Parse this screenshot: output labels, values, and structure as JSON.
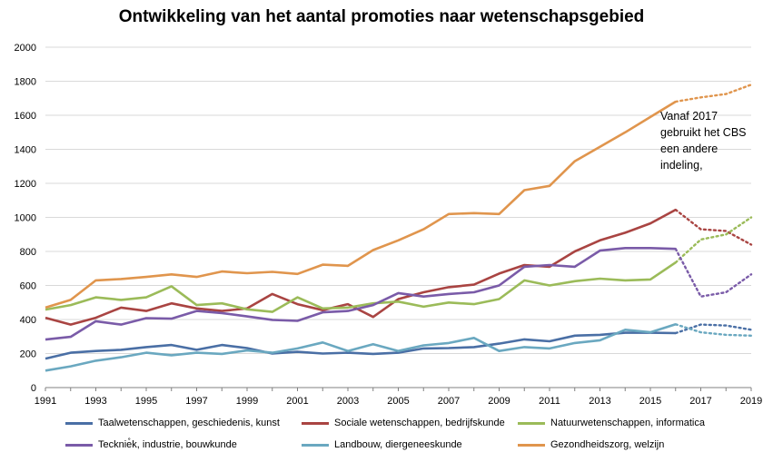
{
  "chart_data": {
    "type": "line",
    "title": "Ontwikkeling van het aantal promoties naar wetenschapsgebied",
    "xlabel": "",
    "ylabel": "",
    "xlim": [
      1991,
      2019
    ],
    "ylim": [
      0,
      2000
    ],
    "yticks": [
      0,
      200,
      400,
      600,
      800,
      1000,
      1200,
      1400,
      1600,
      1800,
      2000
    ],
    "xticks": [
      1991,
      1993,
      1995,
      1997,
      1999,
      2001,
      2003,
      2005,
      2007,
      2009,
      2011,
      2013,
      2015,
      2017,
      2019
    ],
    "grid": "horizontal",
    "legend_position": "bottom",
    "annotation": "Vanaf 2017 gebruikt het CBS een andere indeling,",
    "series": [
      {
        "name": "Taalwetenschappen, geschiedenis, kunst",
        "color": "#4a6fa5",
        "solid": {
          "x": [
            1991,
            1992,
            1993,
            1994,
            1995,
            1996,
            1997,
            1998,
            1999,
            2000,
            2001,
            2002,
            2003,
            2004,
            2005,
            2006,
            2007,
            2008,
            2009,
            2010,
            2011,
            2012,
            2013,
            2014,
            2015,
            2016
          ],
          "y": [
            170,
            205,
            215,
            222,
            238,
            250,
            222,
            250,
            232,
            200,
            210,
            200,
            205,
            198,
            205,
            230,
            232,
            238,
            258,
            283,
            272,
            305,
            310,
            322,
            322,
            320
          ]
        },
        "dotted": {
          "x": [
            2016,
            2017,
            2018,
            2019
          ],
          "y": [
            320,
            370,
            365,
            340
          ]
        }
      },
      {
        "name": "Sociale wetenschappen, bedrijfskunde",
        "color": "#a94442",
        "solid": {
          "x": [
            1991,
            1992,
            1993,
            1994,
            1995,
            1996,
            1997,
            1998,
            1999,
            2000,
            2001,
            2002,
            2003,
            2004,
            2005,
            2006,
            2007,
            2008,
            2009,
            2010,
            2011,
            2012,
            2013,
            2014,
            2015,
            2016
          ],
          "y": [
            410,
            370,
            410,
            470,
            450,
            495,
            465,
            450,
            465,
            550,
            490,
            455,
            490,
            415,
            520,
            560,
            590,
            605,
            670,
            720,
            710,
            800,
            865,
            910,
            965,
            1045
          ]
        },
        "dotted": {
          "x": [
            2016,
            2017,
            2018,
            2019
          ],
          "y": [
            1045,
            930,
            920,
            840
          ]
        }
      },
      {
        "name": "Natuurwetenschappen, informatica",
        "color": "#9bbb59",
        "solid": {
          "x": [
            1991,
            1992,
            1993,
            1994,
            1995,
            1996,
            1997,
            1998,
            1999,
            2000,
            2001,
            2002,
            2003,
            2004,
            2005,
            2006,
            2007,
            2008,
            2009,
            2010,
            2011,
            2012,
            2013,
            2014,
            2015,
            2016
          ],
          "y": [
            458,
            485,
            530,
            515,
            530,
            595,
            485,
            495,
            460,
            445,
            530,
            465,
            470,
            495,
            505,
            475,
            500,
            490,
            520,
            630,
            600,
            625,
            640,
            630,
            635,
            735
          ]
        },
        "dotted": {
          "x": [
            2016,
            2017,
            2018,
            2019
          ],
          "y": [
            735,
            870,
            900,
            1000
          ]
        }
      },
      {
        "name": "Tecknie̊k, industrie, bouwkunde",
        "color": "#7a5ba8",
        "solid": {
          "x": [
            1991,
            1992,
            1993,
            1994,
            1995,
            1996,
            1997,
            1998,
            1999,
            2000,
            2001,
            2002,
            2003,
            2004,
            2005,
            2006,
            2007,
            2008,
            2009,
            2010,
            2011,
            2012,
            2013,
            2014,
            2015,
            2016
          ],
          "y": [
            282,
            298,
            390,
            370,
            408,
            405,
            450,
            438,
            418,
            398,
            392,
            442,
            450,
            485,
            555,
            535,
            550,
            560,
            600,
            710,
            720,
            710,
            805,
            820,
            820,
            815
          ]
        },
        "dotted": {
          "x": [
            2016,
            2017,
            2018,
            2019
          ],
          "y": [
            815,
            535,
            560,
            665
          ]
        }
      },
      {
        "name": "Landbouw, diergeneeskunde",
        "color": "#6aa8c0",
        "solid": {
          "x": [
            1991,
            1992,
            1993,
            1994,
            1995,
            1996,
            1997,
            1998,
            1999,
            2000,
            2001,
            2002,
            2003,
            2004,
            2005,
            2006,
            2007,
            2008,
            2009,
            2010,
            2011,
            2012,
            2013,
            2014,
            2015,
            2016
          ],
          "y": [
            100,
            125,
            158,
            178,
            205,
            190,
            205,
            198,
            218,
            205,
            230,
            265,
            215,
            255,
            215,
            248,
            262,
            292,
            215,
            238,
            230,
            262,
            278,
            340,
            325,
            372
          ]
        },
        "dotted": {
          "x": [
            2016,
            2017,
            2018,
            2019
          ],
          "y": [
            372,
            325,
            310,
            305
          ]
        }
      },
      {
        "name": "Gezondheidszorg, welzijn",
        "color": "#e0954d",
        "solid": {
          "x": [
            1991,
            1992,
            1993,
            1994,
            1995,
            1996,
            1997,
            1998,
            1999,
            2000,
            2001,
            2002,
            2003,
            2004,
            2005,
            2006,
            2007,
            2008,
            2009,
            2010,
            2011,
            2012,
            2013,
            2014,
            2015,
            2016
          ],
          "y": [
            470,
            515,
            630,
            638,
            650,
            665,
            650,
            682,
            672,
            680,
            668,
            722,
            715,
            808,
            865,
            930,
            1020,
            1025,
            1020,
            1160,
            1185,
            1330,
            1415,
            1500,
            1590,
            1680
          ]
        },
        "dotted": {
          "x": [
            2016,
            2017,
            2018,
            2019
          ],
          "y": [
            1680,
            1705,
            1725,
            1780
          ]
        }
      }
    ]
  }
}
